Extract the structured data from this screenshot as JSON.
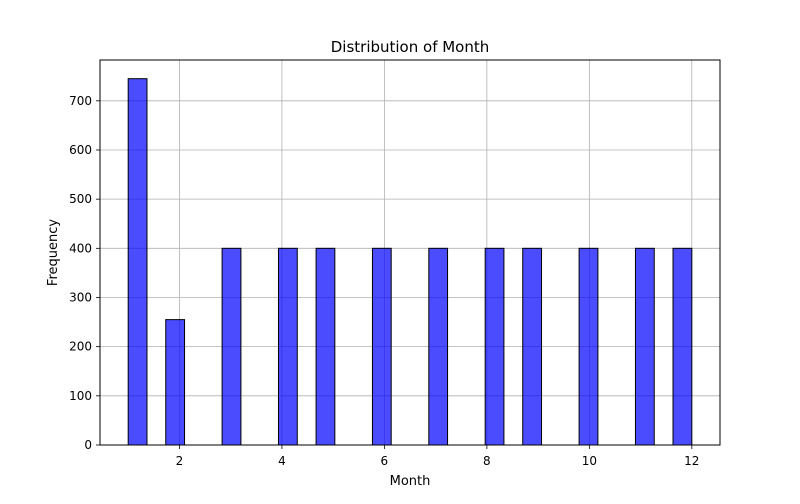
{
  "chart_data": {
    "type": "bar",
    "title": "Distribution of Month",
    "xlabel": "Month",
    "ylabel": "Frequency",
    "xlim": [
      0.45,
      12.55
    ],
    "ylim": [
      0,
      783
    ],
    "x_ticks": [
      2,
      4,
      6,
      8,
      10,
      12
    ],
    "y_ticks": [
      0,
      100,
      200,
      300,
      400,
      500,
      600,
      700
    ],
    "grid": true,
    "bar_color": "#0000ff",
    "bar_edge_color": "#000000",
    "bars": [
      {
        "x_start": 1.0,
        "x_end": 1.367,
        "value": 745
      },
      {
        "x_start": 1.733,
        "x_end": 2.1,
        "value": 255
      },
      {
        "x_start": 2.833,
        "x_end": 3.2,
        "value": 400
      },
      {
        "x_start": 3.933,
        "x_end": 4.3,
        "value": 400
      },
      {
        "x_start": 4.667,
        "x_end": 5.033,
        "value": 400
      },
      {
        "x_start": 5.767,
        "x_end": 6.133,
        "value": 400
      },
      {
        "x_start": 6.867,
        "x_end": 7.233,
        "value": 400
      },
      {
        "x_start": 7.967,
        "x_end": 8.333,
        "value": 400
      },
      {
        "x_start": 8.7,
        "x_end": 9.067,
        "value": 400
      },
      {
        "x_start": 9.8,
        "x_end": 10.167,
        "value": 400
      },
      {
        "x_start": 10.9,
        "x_end": 11.267,
        "value": 400
      },
      {
        "x_start": 11.633,
        "x_end": 12.0,
        "value": 400
      }
    ]
  }
}
